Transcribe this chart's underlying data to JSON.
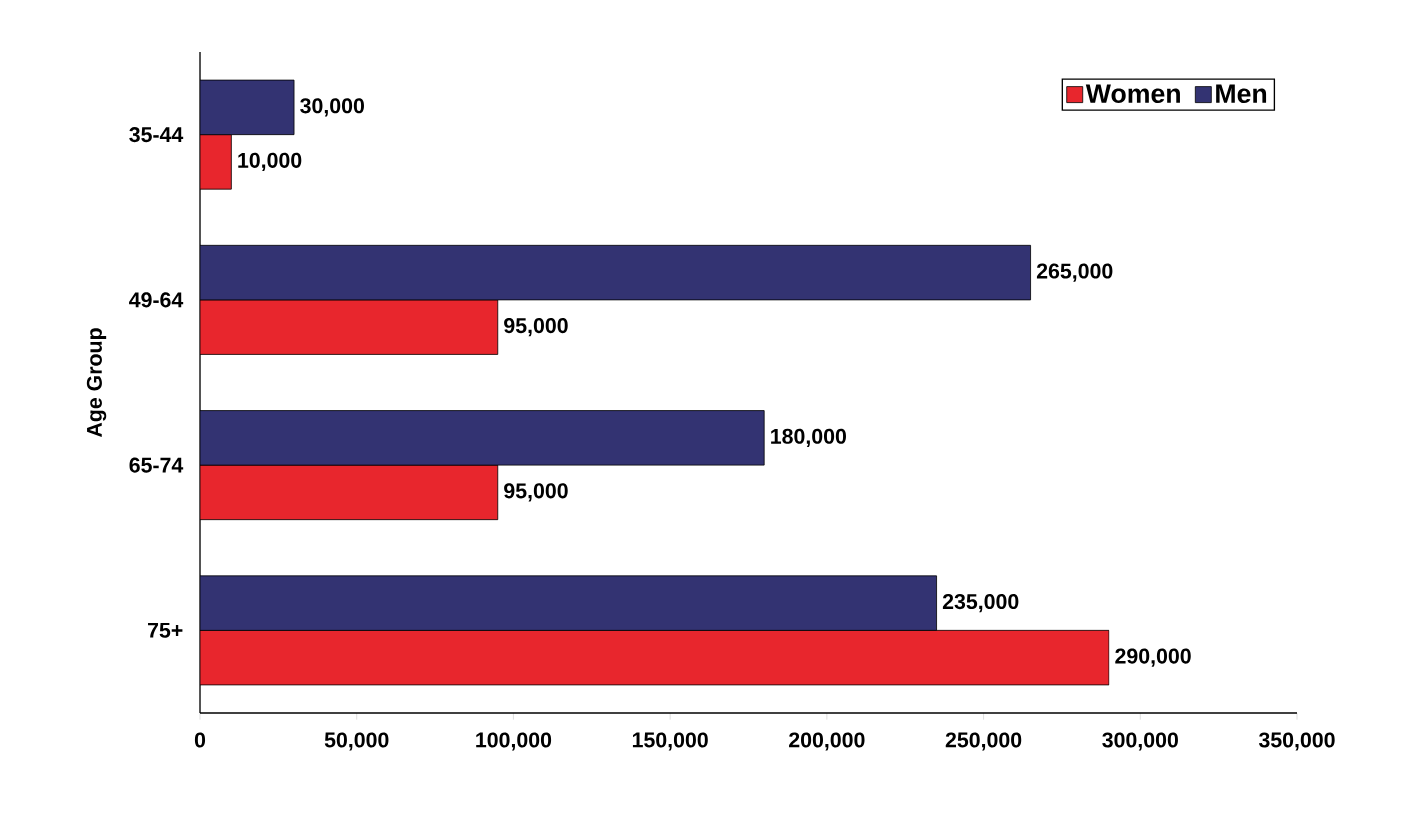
{
  "chart_data": {
    "type": "bar",
    "orientation": "horizontal",
    "ylabel": "Age Group",
    "categories": [
      "35-44",
      "49-64",
      "65-74",
      "75+"
    ],
    "series": [
      {
        "name": "Women",
        "color": "#e8262d",
        "values": [
          10000,
          95000,
          95000,
          290000
        ],
        "value_labels": [
          "10,000",
          "95,000",
          "95,000",
          "290,000"
        ]
      },
      {
        "name": "Men",
        "color": "#333372",
        "values": [
          30000,
          265000,
          180000,
          235000
        ],
        "value_labels": [
          "30,000",
          "265,000",
          "180,000",
          "235,000"
        ]
      }
    ],
    "xlim": [
      0,
      350000
    ],
    "xticks": [
      0,
      {
        "value": 50000,
        "label": "50,000"
      },
      {
        "value": 100000,
        "label": "100,000"
      },
      {
        "value": 150000,
        "label": "150,000"
      },
      {
        "value": 200000,
        "label": "200,000"
      },
      {
        "value": 250000,
        "label": "250,000"
      },
      {
        "value": 300000,
        "label": "300,000"
      },
      {
        "value": 350000,
        "label": "350,000"
      }
    ],
    "legend": "top right",
    "grid": false
  }
}
